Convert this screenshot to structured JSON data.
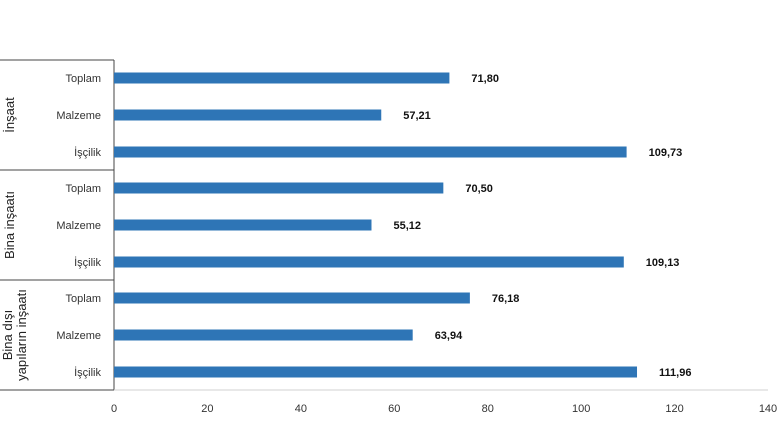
{
  "chart_data": {
    "type": "bar",
    "orientation": "horizontal",
    "xlim": [
      0,
      140
    ],
    "x_ticks": [
      "0",
      "20",
      "40",
      "60",
      "80",
      "100",
      "120",
      "140"
    ],
    "bar_color": "#2e75b6",
    "groups": [
      {
        "name": "İnşaat",
        "bars": [
          {
            "category": "Toplam",
            "value": 71.8,
            "label": "71,80"
          },
          {
            "category": "Malzeme",
            "value": 57.21,
            "label": "57,21"
          },
          {
            "category": "İşçilik",
            "value": 109.73,
            "label": "109,73"
          }
        ]
      },
      {
        "name": "Bina inşaatı",
        "bars": [
          {
            "category": "Toplam",
            "value": 70.5,
            "label": "70,50"
          },
          {
            "category": "Malzeme",
            "value": 55.12,
            "label": "55,12"
          },
          {
            "category": "İşçilik",
            "value": 109.13,
            "label": "109,13"
          }
        ]
      },
      {
        "name": "Bina dışı\nyapıların inşaatı",
        "bars": [
          {
            "category": "Toplam",
            "value": 76.18,
            "label": "76,18"
          },
          {
            "category": "Malzeme",
            "value": 63.94,
            "label": "63,94"
          },
          {
            "category": "İşçilik",
            "value": 111.96,
            "label": "111,96"
          }
        ]
      }
    ]
  }
}
